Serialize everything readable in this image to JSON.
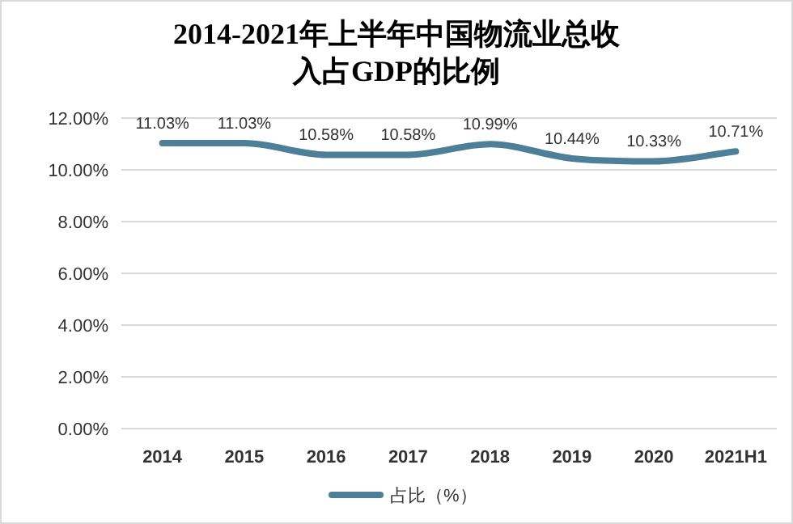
{
  "chart_data": {
    "type": "line",
    "title": "2014-2021年上半年中国物流业总收入占GDP的比例",
    "categories": [
      "2014",
      "2015",
      "2016",
      "2017",
      "2018",
      "2019",
      "2020",
      "2021H1"
    ],
    "series": [
      {
        "name": "占比（%）",
        "color": "#4d7f98",
        "values": [
          11.03,
          11.03,
          10.58,
          10.58,
          10.99,
          10.44,
          10.33,
          10.71
        ],
        "value_labels": [
          "11.03%",
          "11.03%",
          "10.58%",
          "10.58%",
          "10.99%",
          "10.44%",
          "10.33%",
          "10.71%"
        ]
      }
    ],
    "ylim": [
      0,
      12
    ],
    "yticks": [
      {
        "value": 0,
        "label": "0.00%"
      },
      {
        "value": 2,
        "label": "2.00%"
      },
      {
        "value": 4,
        "label": "4.00%"
      },
      {
        "value": 6,
        "label": "6.00%"
      },
      {
        "value": 8,
        "label": "8.00%"
      },
      {
        "value": 10,
        "label": "10.00%"
      },
      {
        "value": 12,
        "label": "12.00%"
      }
    ],
    "grid": "y",
    "legend": "bottom"
  }
}
